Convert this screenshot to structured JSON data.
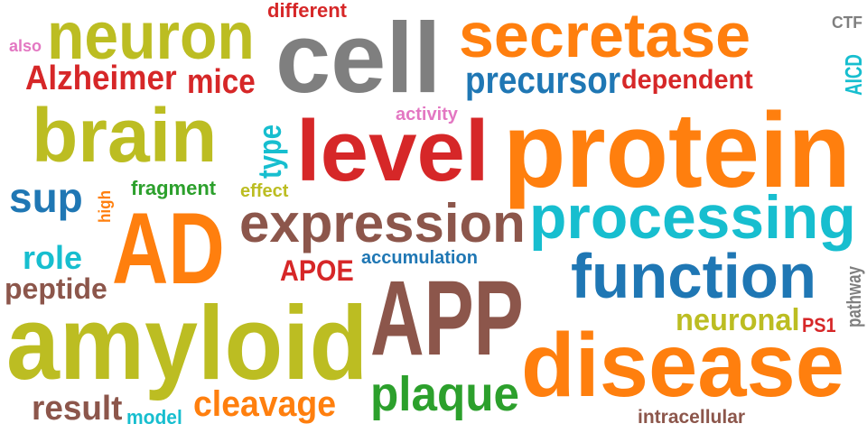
{
  "colors": {
    "orange": "#ff7f0e",
    "gray": "#7f7f7f",
    "olive": "#bcbd22",
    "red": "#d62728",
    "blue": "#1f77b4",
    "brown": "#8c564b",
    "cyan": "#17becf",
    "green": "#2ca02c",
    "pink": "#e377c2"
  },
  "words": [
    {
      "text": "protein",
      "color": "orange"
    },
    {
      "text": "secretase",
      "color": "orange"
    },
    {
      "text": "cell",
      "color": "gray"
    },
    {
      "text": "neuron",
      "color": "olive"
    },
    {
      "text": "different",
      "color": "red"
    },
    {
      "text": "CTF",
      "color": "gray"
    },
    {
      "text": "also",
      "color": "pink"
    },
    {
      "text": "Alzheimer",
      "color": "red"
    },
    {
      "text": "mice",
      "color": "red"
    },
    {
      "text": "precursor",
      "color": "blue"
    },
    {
      "text": "dependent",
      "color": "red"
    },
    {
      "text": "AICD",
      "color": "cyan"
    },
    {
      "text": "activity",
      "color": "pink"
    },
    {
      "text": "brain",
      "color": "olive"
    },
    {
      "text": "type",
      "color": "cyan"
    },
    {
      "text": "level",
      "color": "red"
    },
    {
      "text": "sup",
      "color": "blue"
    },
    {
      "text": "high",
      "color": "orange"
    },
    {
      "text": "fragment",
      "color": "green"
    },
    {
      "text": "effect",
      "color": "olive"
    },
    {
      "text": "AD",
      "color": "orange"
    },
    {
      "text": "expression",
      "color": "brown"
    },
    {
      "text": "processing",
      "color": "cyan"
    },
    {
      "text": "role",
      "color": "cyan"
    },
    {
      "text": "APOE",
      "color": "red"
    },
    {
      "text": "accumulation",
      "color": "blue"
    },
    {
      "text": "function",
      "color": "blue"
    },
    {
      "text": "peptide",
      "color": "brown"
    },
    {
      "text": "pathway",
      "color": "gray"
    },
    {
      "text": "amyloid",
      "color": "olive"
    },
    {
      "text": "APP",
      "color": "brown"
    },
    {
      "text": "neuronal",
      "color": "olive"
    },
    {
      "text": "PS1",
      "color": "red"
    },
    {
      "text": "disease",
      "color": "orange"
    },
    {
      "text": "plaque",
      "color": "green"
    },
    {
      "text": "result",
      "color": "brown"
    },
    {
      "text": "model",
      "color": "cyan"
    },
    {
      "text": "cleavage",
      "color": "orange"
    },
    {
      "text": "intracellular",
      "color": "brown"
    }
  ]
}
